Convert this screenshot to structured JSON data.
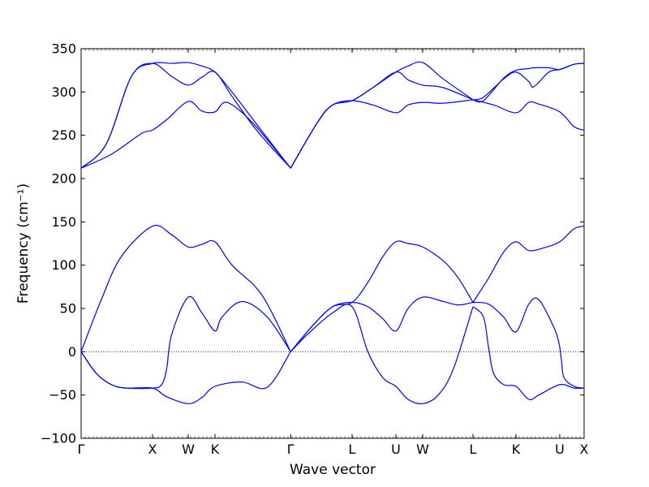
{
  "chart_data": {
    "type": "line",
    "title": "",
    "xlabel": "Wave vector",
    "ylabel": "Frequency (cm⁻¹)",
    "ylim": [
      -100,
      350
    ],
    "yticks": [
      -100,
      -50,
      0,
      50,
      100,
      150,
      200,
      250,
      300,
      350
    ],
    "xlim": [
      0,
      1
    ],
    "xticks": [
      {
        "label": "Γ",
        "x": 0.0
      },
      {
        "label": "X",
        "x": 0.1419
      },
      {
        "label": "W",
        "x": 0.2129
      },
      {
        "label": "K",
        "x": 0.2661
      },
      {
        "label": "Γ",
        "x": 0.4165
      },
      {
        "label": "L",
        "x": 0.5387
      },
      {
        "label": "U",
        "x": 0.6258
      },
      {
        "label": "W",
        "x": 0.679
      },
      {
        "label": "L",
        "x": 0.779
      },
      {
        "label": "K",
        "x": 0.8645
      },
      {
        "label": "U",
        "x": 0.9516
      },
      {
        "label": "X",
        "x": 1.0
      }
    ],
    "zero_line": true,
    "line_color": "#0000ff",
    "series": [
      {
        "x": [
          0,
          0.03,
          0.06,
          0.09,
          0.1419,
          0.17,
          0.2129,
          0.24,
          0.2661,
          0.32,
          0.37,
          0.4165
        ],
        "y": [
          0,
          -25,
          -38,
          -42,
          -42,
          -52,
          -60,
          -53,
          -40,
          -35,
          -41,
          0
        ]
      },
      {
        "x": [
          0,
          0.03,
          0.06,
          0.09,
          0.1419,
          0.16,
          0.17,
          0.18,
          0.2129,
          0.24,
          0.2661,
          0.28,
          0.32,
          0.37,
          0.4165
        ],
        "y": [
          0,
          -25,
          -38,
          -42,
          -42,
          -38,
          -20,
          20,
          63,
          45,
          24,
          40,
          58,
          40,
          0
        ]
      },
      {
        "x": [
          0,
          0.04,
          0.08,
          0.1419,
          0.18,
          0.2129,
          0.24,
          0.2661,
          0.3,
          0.36,
          0.4165
        ],
        "y": [
          0,
          60,
          110,
          145,
          135,
          121,
          124,
          127,
          100,
          65,
          0
        ]
      },
      {
        "x": [
          0.4165,
          0.45,
          0.5,
          0.5387,
          0.57,
          0.6,
          0.6258,
          0.65,
          0.679,
          0.71,
          0.74,
          0.779
        ],
        "y": [
          0,
          20,
          45,
          52,
          0,
          -30,
          -40,
          -55,
          -60,
          -50,
          -20,
          52
        ]
      },
      {
        "x": [
          0.4165,
          0.46,
          0.5,
          0.5387,
          0.57,
          0.6,
          0.6258,
          0.65,
          0.679,
          0.72,
          0.75,
          0.779
        ],
        "y": [
          0,
          30,
          52,
          57,
          52,
          38,
          24,
          50,
          63,
          58,
          54,
          57
        ]
      },
      {
        "x": [
          0.4165,
          0.46,
          0.5,
          0.5387,
          0.57,
          0.6,
          0.6258,
          0.65,
          0.679,
          0.72,
          0.75,
          0.779
        ],
        "y": [
          0,
          30,
          52,
          57,
          80,
          110,
          127,
          125,
          121,
          105,
          85,
          57
        ]
      },
      {
        "x": [
          0.779,
          0.8,
          0.81,
          0.82,
          0.84,
          0.8645,
          0.89,
          0.91,
          0.9516,
          0.98,
          1.0
        ],
        "y": [
          52,
          40,
          5,
          -25,
          -38,
          -40,
          -55,
          -50,
          -38,
          -42,
          -42
        ]
      },
      {
        "x": [
          0.779,
          0.81,
          0.84,
          0.8645,
          0.89,
          0.91,
          0.94,
          0.95,
          0.955,
          0.96,
          0.98,
          1.0
        ],
        "y": [
          57,
          55,
          40,
          23,
          55,
          60,
          28,
          10,
          -10,
          -30,
          -40,
          -42
        ]
      },
      {
        "x": [
          0.779,
          0.81,
          0.84,
          0.8645,
          0.89,
          0.92,
          0.9516,
          0.98,
          1.0
        ],
        "y": [
          57,
          85,
          115,
          127,
          117,
          120,
          127,
          142,
          145
        ]
      },
      {
        "x": [
          0,
          0.05,
          0.1,
          0.1419,
          0.18,
          0.2129,
          0.24,
          0.2661,
          0.3,
          0.35,
          0.4165
        ],
        "y": [
          212,
          240,
          318,
          333,
          333,
          334,
          330,
          323,
          300,
          262,
          212
        ]
      },
      {
        "x": [
          0,
          0.05,
          0.1,
          0.1419,
          0.18,
          0.2129,
          0.24,
          0.2661,
          0.3,
          0.35,
          0.4165
        ],
        "y": [
          212,
          240,
          318,
          333,
          318,
          308,
          317,
          323,
          295,
          255,
          212
        ]
      },
      {
        "x": [
          0,
          0.06,
          0.12,
          0.1419,
          0.17,
          0.2129,
          0.24,
          0.2661,
          0.29,
          0.34,
          0.4165
        ],
        "y": [
          212,
          228,
          252,
          256,
          268,
          289,
          278,
          277,
          288,
          265,
          212
        ]
      },
      {
        "x": [
          0.4165,
          0.47,
          0.5,
          0.5387,
          0.58,
          0.6258,
          0.65,
          0.679,
          0.72,
          0.779
        ],
        "y": [
          212,
          265,
          285,
          290,
          305,
          323,
          314,
          308,
          305,
          291
        ]
      },
      {
        "x": [
          0.4165,
          0.47,
          0.5,
          0.5387,
          0.58,
          0.6258,
          0.65,
          0.679,
          0.72,
          0.779
        ],
        "y": [
          212,
          265,
          285,
          290,
          305,
          323,
          330,
          334,
          315,
          291
        ]
      },
      {
        "x": [
          0.4165,
          0.47,
          0.5,
          0.5387,
          0.58,
          0.6258,
          0.65,
          0.679,
          0.72,
          0.779
        ],
        "y": [
          212,
          265,
          285,
          290,
          285,
          276,
          285,
          288,
          287,
          291
        ]
      },
      {
        "x": [
          0.779,
          0.8,
          0.84,
          0.8645,
          0.89,
          0.9,
          0.93,
          0.9516,
          0.98,
          1.0
        ],
        "y": [
          291,
          294,
          315,
          323,
          312,
          306,
          323,
          326,
          332,
          333
        ]
      },
      {
        "x": [
          0.779,
          0.8,
          0.84,
          0.8645,
          0.89,
          0.9,
          0.93,
          0.9516,
          0.98,
          1.0
        ],
        "y": [
          291,
          290,
          316,
          325,
          327,
          328,
          328,
          326,
          332,
          333
        ]
      },
      {
        "x": [
          0.779,
          0.82,
          0.8645,
          0.89,
          0.91,
          0.9516,
          0.98,
          1.0
        ],
        "y": [
          291,
          285,
          276,
          288,
          286,
          277,
          260,
          256
        ]
      }
    ]
  }
}
